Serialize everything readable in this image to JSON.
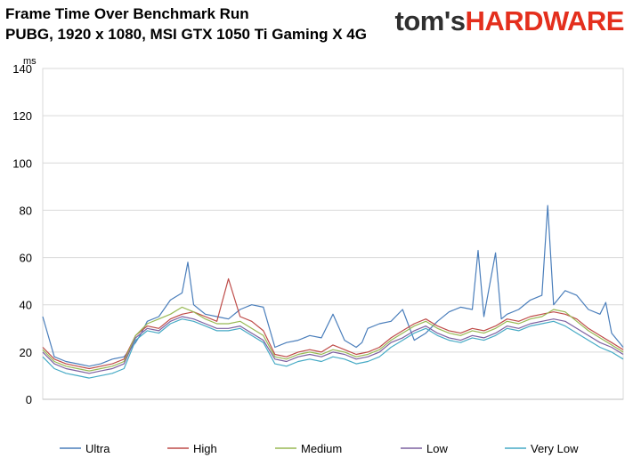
{
  "header": {
    "title_line1": "Frame Time Over Benchmark Run",
    "title_line2": "PUBG, 1920 x 1080, MSI GTX 1050 Ti Gaming X 4G",
    "logo_part1": "tom's",
    "logo_part2": "HARDWARE",
    "logo_colors": {
      "part1": "#2f2f2f",
      "part2": "#e42f1d"
    }
  },
  "chart_data": {
    "type": "line",
    "title": "Frame Time Over Benchmark Run",
    "subtitle": "PUBG, 1920 x 1080, MSI GTX 1050 Ti Gaming X 4G",
    "ylabel": "ms",
    "xlabel": "",
    "ylim": [
      0,
      140
    ],
    "yticks": [
      0,
      20,
      40,
      60,
      80,
      100,
      120,
      140
    ],
    "xlim": [
      0,
      100
    ],
    "grid": "horizontal",
    "legend_position": "bottom",
    "series": [
      {
        "name": "Ultra",
        "color": "#4a7ebb",
        "x": [
          0,
          2,
          4,
          6,
          8,
          10,
          12,
          14,
          16,
          17,
          18,
          20,
          22,
          24,
          25,
          26,
          27,
          28,
          30,
          32,
          34,
          36,
          38,
          40,
          42,
          44,
          46,
          48,
          50,
          52,
          54,
          55,
          56,
          58,
          60,
          62,
          64,
          66,
          68,
          70,
          72,
          74,
          75,
          76,
          78,
          79,
          80,
          82,
          84,
          86,
          87,
          88,
          90,
          92,
          94,
          96,
          97,
          98,
          100
        ],
        "y": [
          35,
          18,
          16,
          15,
          14,
          15,
          17,
          18,
          24,
          28,
          33,
          35,
          42,
          45,
          58,
          40,
          38,
          36,
          35,
          34,
          38,
          40,
          39,
          22,
          24,
          25,
          27,
          26,
          36,
          25,
          22,
          24,
          30,
          32,
          33,
          38,
          25,
          28,
          33,
          37,
          39,
          38,
          63,
          35,
          62,
          34,
          36,
          38,
          42,
          44,
          82,
          40,
          46,
          44,
          38,
          36,
          41,
          28,
          22
        ]
      },
      {
        "name": "High",
        "color": "#be4b48",
        "x": [
          0,
          2,
          4,
          6,
          8,
          10,
          12,
          14,
          16,
          18,
          20,
          22,
          24,
          26,
          28,
          30,
          32,
          34,
          36,
          38,
          40,
          42,
          44,
          46,
          48,
          50,
          52,
          54,
          56,
          58,
          60,
          62,
          64,
          66,
          68,
          70,
          72,
          74,
          76,
          78,
          80,
          82,
          84,
          86,
          88,
          90,
          92,
          94,
          96,
          98,
          100
        ],
        "y": [
          22,
          17,
          15,
          14,
          13,
          14,
          15,
          17,
          27,
          31,
          30,
          34,
          36,
          37,
          35,
          33,
          51,
          35,
          33,
          29,
          19,
          18,
          20,
          21,
          20,
          23,
          21,
          19,
          20,
          22,
          26,
          29,
          32,
          34,
          31,
          29,
          28,
          30,
          29,
          31,
          34,
          33,
          35,
          36,
          37,
          36,
          34,
          30,
          27,
          24,
          21
        ]
      },
      {
        "name": "Medium",
        "color": "#98b954",
        "x": [
          0,
          2,
          4,
          6,
          8,
          10,
          12,
          14,
          16,
          18,
          20,
          22,
          24,
          26,
          28,
          30,
          32,
          34,
          36,
          38,
          40,
          42,
          44,
          46,
          48,
          50,
          52,
          54,
          56,
          58,
          60,
          62,
          64,
          66,
          68,
          70,
          72,
          74,
          76,
          78,
          80,
          82,
          84,
          86,
          88,
          90,
          92,
          94,
          96,
          98,
          100
        ],
        "y": [
          21,
          16,
          14,
          13,
          12,
          13,
          14,
          16,
          27,
          32,
          34,
          36,
          39,
          37,
          34,
          32,
          32,
          33,
          30,
          27,
          18,
          17,
          19,
          20,
          19,
          21,
          20,
          18,
          19,
          21,
          25,
          28,
          31,
          33,
          30,
          28,
          27,
          29,
          28,
          30,
          33,
          32,
          34,
          35,
          38,
          37,
          33,
          29,
          26,
          23,
          20
        ]
      },
      {
        "name": "Low",
        "color": "#7d60a0",
        "x": [
          0,
          2,
          4,
          6,
          8,
          10,
          12,
          14,
          16,
          18,
          20,
          22,
          24,
          26,
          28,
          30,
          32,
          34,
          36,
          38,
          40,
          42,
          44,
          46,
          48,
          50,
          52,
          54,
          56,
          58,
          60,
          62,
          64,
          66,
          68,
          70,
          72,
          74,
          76,
          78,
          80,
          82,
          84,
          86,
          88,
          90,
          92,
          94,
          96,
          98,
          100
        ],
        "y": [
          20,
          15,
          13,
          12,
          11,
          12,
          13,
          15,
          26,
          30,
          29,
          33,
          35,
          34,
          32,
          30,
          30,
          31,
          28,
          25,
          17,
          16,
          18,
          19,
          18,
          20,
          19,
          17,
          18,
          20,
          24,
          26,
          29,
          31,
          28,
          26,
          25,
          27,
          26,
          28,
          31,
          30,
          32,
          33,
          34,
          33,
          30,
          27,
          24,
          22,
          19
        ]
      },
      {
        "name": "Very Low",
        "color": "#46aac5",
        "x": [
          0,
          2,
          4,
          6,
          8,
          10,
          12,
          14,
          16,
          18,
          20,
          22,
          24,
          26,
          28,
          30,
          32,
          34,
          36,
          38,
          40,
          42,
          44,
          46,
          48,
          50,
          52,
          54,
          56,
          58,
          60,
          62,
          64,
          66,
          68,
          70,
          72,
          74,
          76,
          78,
          80,
          82,
          84,
          86,
          88,
          90,
          92,
          94,
          96,
          98,
          100
        ],
        "y": [
          18,
          13,
          11,
          10,
          9,
          10,
          11,
          13,
          25,
          29,
          28,
          32,
          34,
          33,
          31,
          29,
          29,
          30,
          27,
          24,
          15,
          14,
          16,
          17,
          16,
          18,
          17,
          15,
          16,
          18,
          22,
          25,
          28,
          30,
          27,
          25,
          24,
          26,
          25,
          27,
          30,
          29,
          31,
          32,
          33,
          31,
          28,
          25,
          22,
          20,
          17
        ]
      }
    ]
  }
}
